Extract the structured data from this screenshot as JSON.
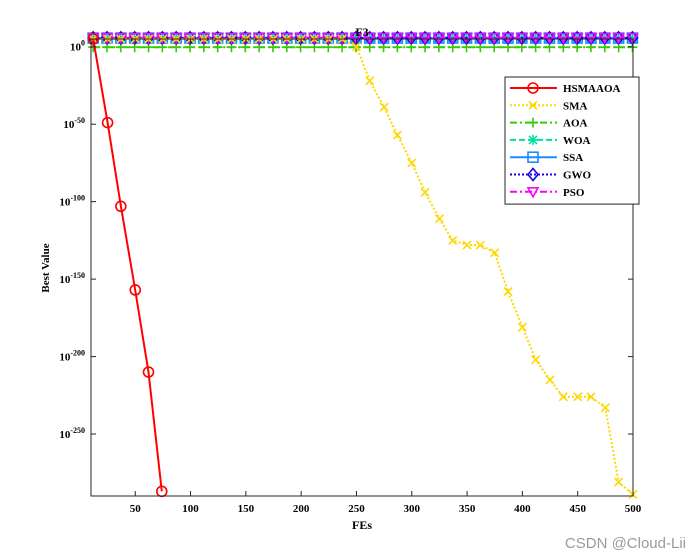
{
  "chart_data": {
    "type": "line",
    "title": "F3",
    "xlabel": "FEs",
    "ylabel": "Best Value",
    "xlim": [
      10,
      500
    ],
    "ylim_exp": [
      -290,
      5
    ],
    "log_y": true,
    "grid": false,
    "legend_position": "top-right",
    "x_ticks": [
      "50",
      "100",
      "150",
      "200",
      "250",
      "300",
      "350",
      "400",
      "450",
      "500"
    ],
    "x_tick_values": [
      50,
      100,
      150,
      200,
      250,
      300,
      350,
      400,
      450,
      500
    ],
    "y_ticks": [
      {
        "exp": 0,
        "base": "10",
        "sup": "0"
      },
      {
        "exp": -50,
        "base": "10",
        "sup": "-50"
      },
      {
        "exp": -100,
        "base": "10",
        "sup": "-100"
      },
      {
        "exp": -150,
        "base": "10",
        "sup": "-150"
      },
      {
        "exp": -200,
        "base": "10",
        "sup": "-200"
      },
      {
        "exp": -250,
        "base": "10",
        "sup": "-250"
      }
    ],
    "series": [
      {
        "name": "HSMAAOA",
        "color": "#ff0000",
        "dash": "solid",
        "marker": "circle",
        "x": [
          12,
          25,
          37,
          50,
          62,
          74
        ],
        "y_exp": [
          5,
          -49,
          -103,
          -157,
          -210,
          -287
        ]
      },
      {
        "name": "SMA",
        "color": "#ffd700",
        "dash": "dotted",
        "marker": "x",
        "x": [
          12,
          25,
          37,
          50,
          62,
          75,
          87,
          100,
          112,
          125,
          137,
          150,
          162,
          175,
          187,
          200,
          212,
          225,
          237,
          250,
          262,
          275,
          287,
          300,
          312,
          325,
          337,
          350,
          362,
          375,
          387,
          400,
          412,
          425,
          437,
          450,
          462,
          475,
          487,
          500
        ],
        "y_exp": [
          5,
          5,
          5,
          5,
          5,
          5,
          5,
          5,
          5,
          5,
          5,
          5,
          5,
          5,
          5,
          5,
          5,
          5,
          5,
          0,
          -22,
          -39,
          -57,
          -75,
          -94,
          -111,
          -125,
          -128,
          -128,
          -133,
          -158,
          -181,
          -202,
          -215,
          -226,
          -226,
          -226,
          -233,
          -281,
          -289
        ]
      },
      {
        "name": "AOA",
        "color": "#33cc00",
        "dash": "dashdot",
        "marker": "plus",
        "x_start": 12,
        "x_step": 12.5,
        "count": 40,
        "y_exp_const": -0.3
      },
      {
        "name": "WOA",
        "color": "#00e0a0",
        "dash": "dashed",
        "marker": "asterisk",
        "x_start": 12,
        "x_step": 12.5,
        "count": 40,
        "y_exp_const": 5.6
      },
      {
        "name": "SSA",
        "color": "#1a8cff",
        "dash": "solid",
        "marker": "square",
        "x_start": 12,
        "x_step": 12.5,
        "count": 40,
        "y_exp_const": 5.6
      },
      {
        "name": "GWO",
        "color": "#1a00e6",
        "dash": "dotted",
        "marker": "diamond",
        "x_start": 12,
        "x_step": 12.5,
        "count": 40,
        "y_exp_const": 5.7
      },
      {
        "name": "PSO",
        "color": "#ff00ff",
        "dash": "dashdot",
        "marker": "triangle-down",
        "x_start": 12,
        "x_step": 12.5,
        "count": 40,
        "y_exp_const": 5.8
      }
    ]
  },
  "watermark": "CSDN @Cloud-Lii"
}
